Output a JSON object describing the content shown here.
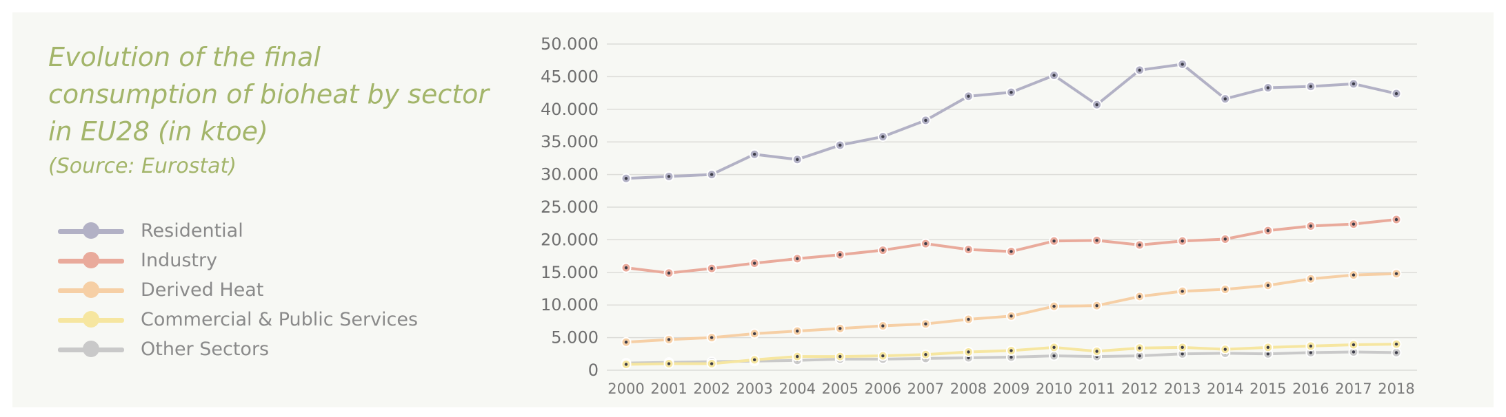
{
  "title": "Evolution of the final consumption of bioheat by sector in EU28 (in ktoe)",
  "source": "(Source: Eurostat)",
  "chart_data": {
    "type": "line",
    "title": "Evolution of the final consumption of bioheat by sector in EU28 (in ktoe)",
    "xlabel": "",
    "ylabel": "",
    "ylim": [
      0,
      50000
    ],
    "yticks": [
      "0",
      "5.000",
      "10.000",
      "15.000",
      "20.000",
      "25.000",
      "30.000",
      "35.000",
      "40.000",
      "45.000",
      "50.000"
    ],
    "ytick_values": [
      0,
      5000,
      10000,
      15000,
      20000,
      25000,
      30000,
      35000,
      40000,
      45000,
      50000
    ],
    "categories": [
      "2000",
      "2001",
      "2002",
      "2003",
      "2004",
      "2005",
      "2006",
      "2007",
      "2008",
      "2009",
      "2010",
      "2011",
      "2012",
      "2013",
      "2014",
      "2015",
      "2016",
      "2017",
      "2018"
    ],
    "grid": true,
    "legend_position": "left",
    "series": [
      {
        "name": "Residential",
        "color": "#b2b1c5",
        "values": [
          29400,
          29700,
          30000,
          33100,
          32300,
          34500,
          35800,
          38300,
          42000,
          42600,
          45200,
          40700,
          46000,
          46900,
          41600,
          43300,
          43500,
          43900,
          42400
        ]
      },
      {
        "name": "Industry",
        "color": "#e9aa9b",
        "values": [
          15700,
          14900,
          15600,
          16400,
          17100,
          17700,
          18400,
          19400,
          18500,
          18200,
          19800,
          19900,
          19200,
          19800,
          20100,
          21400,
          22100,
          22400,
          23100
        ]
      },
      {
        "name": "Derived Heat",
        "color": "#f6cfa5",
        "values": [
          4300,
          4700,
          5000,
          5600,
          6000,
          6400,
          6800,
          7100,
          7800,
          8300,
          9800,
          9900,
          11300,
          12100,
          12400,
          13000,
          14000,
          14600,
          14800
        ]
      },
      {
        "name": "Commercial & Public Services",
        "color": "#f6e6a0",
        "values": [
          900,
          1000,
          1000,
          1600,
          2100,
          2100,
          2200,
          2400,
          2800,
          3000,
          3500,
          2900,
          3400,
          3500,
          3200,
          3500,
          3700,
          3900,
          4000
        ]
      },
      {
        "name": "Other Sectors",
        "color": "#c9c9c9",
        "values": [
          1100,
          1200,
          1300,
          1400,
          1500,
          1700,
          1700,
          1800,
          1900,
          2000,
          2200,
          2100,
          2200,
          2500,
          2600,
          2500,
          2700,
          2800,
          2700
        ]
      }
    ]
  }
}
